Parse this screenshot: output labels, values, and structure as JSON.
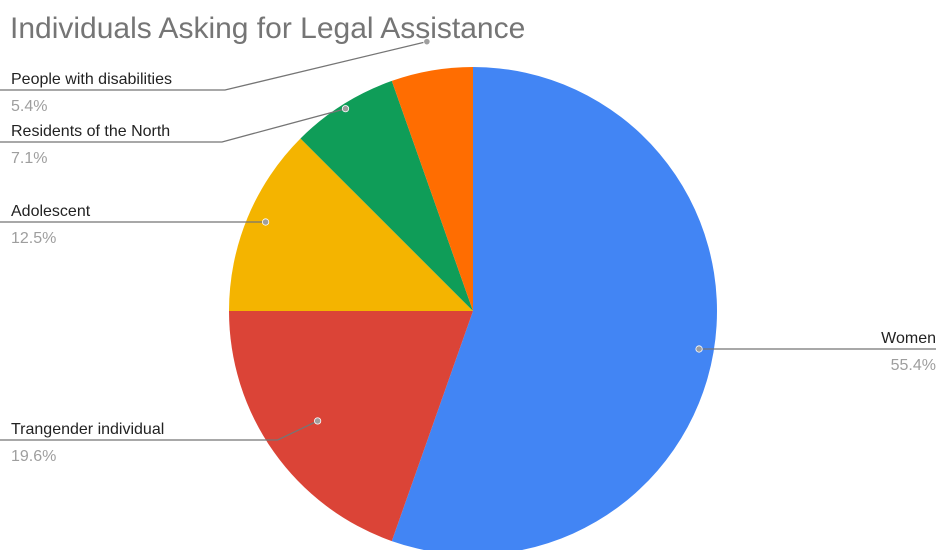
{
  "chart_data": {
    "type": "pie",
    "title": "Individuals Asking for Legal Assistance",
    "slices": [
      {
        "label": "Women",
        "value": 55.4,
        "pct_label": "55.4%",
        "color": "#4285F4"
      },
      {
        "label": "Trangender individual",
        "value": 19.6,
        "pct_label": "19.6%",
        "color": "#DB4437"
      },
      {
        "label": "Adolescent",
        "value": 12.5,
        "pct_label": "12.5%",
        "color": "#F4B400"
      },
      {
        "label": "Residents of the North",
        "value": 7.1,
        "pct_label": "7.1%",
        "color": "#0F9D58"
      },
      {
        "label": "People with disabilities",
        "value": 5.4,
        "pct_label": "5.4%",
        "color": "#FF6D01"
      }
    ],
    "legend": "none"
  }
}
